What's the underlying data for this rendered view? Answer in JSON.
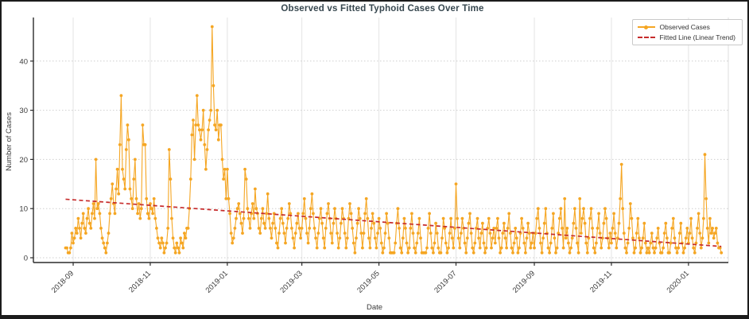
{
  "title": "Observed vs Fitted Typhoid Cases Over Time",
  "legend": {
    "items": [
      {
        "label": "Observed Cases",
        "color": "#F5A623",
        "style": "line-marker"
      },
      {
        "label": "Fitted Line (Linear Trend)",
        "color": "#C62B2B",
        "style": "dashed"
      }
    ],
    "position": "upper right"
  },
  "colors": {
    "observed": "#F5A623",
    "fitted": "#C62B2B",
    "title_text": "#37474f",
    "axis_text": "#3a3a3a",
    "grid": "#d9d9d9",
    "spine": "#2b2b2b",
    "frame_border": "#1c1c1c",
    "background": "#ffffff"
  },
  "chart_data": {
    "type": "line",
    "title": "Observed vs Fitted Typhoid Cases Over Time",
    "xlabel": "Date",
    "ylabel": "Number of Cases",
    "x_tick_labels": [
      "2018-09",
      "2018-11",
      "2019-01",
      "2019-03",
      "2019-05",
      "2019-07",
      "2019-09",
      "2019-11",
      "2020-01"
    ],
    "x_tick_day_indices": [
      6,
      67,
      128,
      187,
      248,
      309,
      371,
      432,
      493
    ],
    "y_ticks": [
      0,
      10,
      20,
      30,
      40
    ],
    "ylim": [
      -1.5,
      48.8
    ],
    "grid": true,
    "legend_position": "upper right",
    "start_date": "2018-08-26",
    "frequency": "daily",
    "series": [
      {
        "name": "Observed Cases",
        "color": "#F5A623",
        "marker": "circle",
        "values": [
          2,
          2,
          1,
          1,
          2,
          5,
          3,
          4,
          6,
          5,
          8,
          6,
          4,
          7,
          9,
          6,
          5,
          8,
          10,
          7,
          6,
          9,
          11,
          8,
          20,
          10,
          11,
          9,
          6,
          4,
          3,
          2,
          1,
          3,
          5,
          9,
          12,
          15,
          11,
          9,
          14,
          18,
          13,
          23,
          33,
          18,
          16,
          14,
          22,
          27,
          24,
          14,
          12,
          10,
          16,
          20,
          12,
          9,
          11,
          8,
          10,
          27,
          23,
          23,
          12,
          9,
          8,
          11,
          10,
          9,
          12,
          8,
          6,
          4,
          3,
          2,
          4,
          3,
          1,
          2,
          3,
          6,
          22,
          16,
          8,
          4,
          2,
          1,
          3,
          2,
          1,
          4,
          3,
          2,
          5,
          4,
          6,
          6,
          10,
          16,
          25,
          28,
          20,
          27,
          33,
          27,
          26,
          24,
          26,
          30,
          23,
          18,
          22,
          26,
          28,
          30,
          47,
          35,
          27,
          26,
          30,
          24,
          27,
          27,
          20,
          16,
          18,
          12,
          18,
          12,
          9,
          5,
          3,
          4,
          6,
          8,
          10,
          11,
          9,
          7,
          5,
          8,
          18,
          16,
          10,
          8,
          6,
          9,
          11,
          8,
          14,
          10,
          9,
          6,
          5,
          8,
          10,
          7,
          6,
          9,
          13,
          8,
          6,
          4,
          7,
          9,
          6,
          3,
          2,
          5,
          8,
          10,
          7,
          5,
          3,
          6,
          8,
          11,
          9,
          6,
          4,
          2,
          5,
          7,
          9,
          6,
          4,
          6,
          9,
          12,
          8,
          5,
          3,
          6,
          10,
          13,
          9,
          6,
          4,
          2,
          5,
          8,
          10,
          7,
          4,
          2,
          6,
          9,
          11,
          8,
          5,
          3,
          7,
          10,
          8,
          5,
          2,
          4,
          7,
          10,
          8,
          5,
          2,
          4,
          8,
          11,
          9,
          6,
          3,
          1,
          4,
          7,
          10,
          8,
          5,
          2,
          5,
          9,
          12,
          8,
          4,
          2,
          6,
          9,
          7,
          4,
          2,
          5,
          8,
          6,
          3,
          1,
          2,
          5,
          9,
          7,
          4,
          1,
          1,
          1,
          1,
          3,
          7,
          10,
          6,
          2,
          1,
          4,
          8,
          6,
          3,
          1,
          2,
          6,
          9,
          5,
          2,
          1,
          3,
          5,
          8,
          4,
          1,
          1,
          1,
          1,
          2,
          6,
          9,
          5,
          2,
          1,
          3,
          7,
          5,
          2,
          1,
          1,
          4,
          8,
          6,
          3,
          1,
          2,
          5,
          8,
          4,
          2,
          6,
          15,
          8,
          4,
          2,
          5,
          8,
          6,
          3,
          1,
          4,
          7,
          9,
          5,
          2,
          1,
          3,
          6,
          8,
          4,
          2,
          5,
          7,
          3,
          1,
          2,
          6,
          8,
          5,
          2,
          4,
          6,
          3,
          6,
          8,
          4,
          1,
          2,
          5,
          7,
          4,
          2,
          6,
          9,
          5,
          2,
          1,
          3,
          6,
          4,
          1,
          2,
          5,
          8,
          6,
          3,
          1,
          4,
          7,
          5,
          2,
          3,
          5,
          2,
          5,
          8,
          10,
          6,
          3,
          1,
          4,
          7,
          10,
          5,
          2,
          1,
          3,
          6,
          9,
          4,
          1,
          2,
          5,
          8,
          10,
          6,
          2,
          12,
          4,
          6,
          3,
          1,
          2,
          4,
          7,
          10,
          6,
          3,
          1,
          12,
          5,
          8,
          10,
          7,
          3,
          1,
          4,
          8,
          10,
          6,
          2,
          1,
          3,
          6,
          9,
          5,
          2,
          4,
          7,
          10,
          8,
          4,
          2,
          5,
          3,
          6,
          9,
          5,
          2,
          4,
          7,
          12,
          19,
          10,
          5,
          2,
          1,
          3,
          6,
          11,
          8,
          4,
          1,
          2,
          5,
          8,
          4,
          1,
          2,
          4,
          7,
          3,
          1,
          2,
          1,
          3,
          5,
          2,
          1,
          2,
          4,
          6,
          3,
          1,
          1,
          2,
          5,
          7,
          4,
          1,
          1,
          3,
          6,
          8,
          4,
          2,
          1,
          2,
          5,
          7,
          3,
          1,
          2,
          4,
          6,
          3,
          5,
          8,
          4,
          2,
          1,
          3,
          6,
          9,
          5,
          2,
          4,
          8,
          21,
          12,
          6,
          3,
          8,
          5,
          6,
          4,
          5,
          6,
          3,
          2,
          2,
          1
        ]
      },
      {
        "name": "Fitted Line (Linear Trend)",
        "color": "#C62B2B",
        "style": "dashed",
        "trend": {
          "start_value": 11.9,
          "end_value": 2.3,
          "slope_per_day": -0.0185
        }
      }
    ]
  }
}
